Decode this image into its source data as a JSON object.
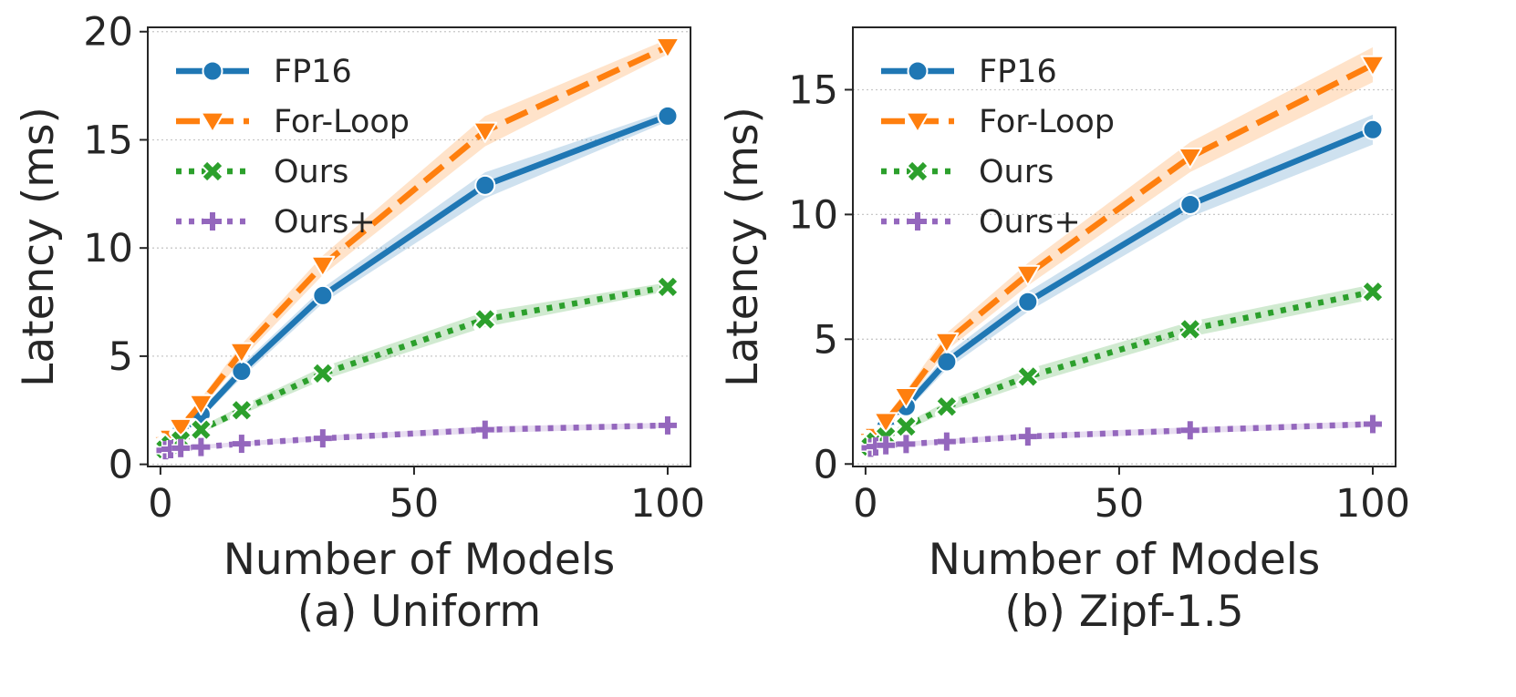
{
  "chart_data": [
    {
      "type": "line",
      "title": "",
      "caption": "(a) Uniform",
      "xlabel": "Number of Models",
      "ylabel": "Latency (ms)",
      "xlim": [
        -2.5,
        104.5
      ],
      "ylim": [
        -0.1,
        20.2
      ],
      "xticks": [
        0,
        50,
        100
      ],
      "yticks": [
        0,
        5,
        10,
        15,
        20
      ],
      "xtick_labels": [
        "0",
        "50",
        "100"
      ],
      "ytick_labels": [
        "0",
        "5",
        "10",
        "15",
        "20"
      ],
      "grid": "y",
      "legend_position": "upper-left",
      "x": [
        1,
        2,
        4,
        8,
        16,
        32,
        64,
        100
      ],
      "series": [
        {
          "name": "FP16",
          "color": "#1f77b4",
          "style": "solid",
          "marker": "circle",
          "values": [
            0.8,
            1.0,
            1.5,
            2.3,
            4.3,
            7.8,
            12.9,
            16.1
          ],
          "band": [
            0.12,
            0.12,
            0.15,
            0.2,
            0.3,
            0.35,
            0.6,
            0.25
          ]
        },
        {
          "name": "For-Loop",
          "color": "#ff7f0e",
          "style": "dashed",
          "marker": "triangle-down",
          "values": [
            0.9,
            1.2,
            1.7,
            2.8,
            5.2,
            9.2,
            15.4,
            19.3
          ],
          "band": [
            0.15,
            0.15,
            0.2,
            0.25,
            0.35,
            0.45,
            0.7,
            0.35
          ]
        },
        {
          "name": "Ours",
          "color": "#2ca02c",
          "style": "dotted",
          "marker": "x",
          "values": [
            0.7,
            0.9,
            1.1,
            1.6,
            2.5,
            4.2,
            6.7,
            8.2
          ],
          "band": [
            0.1,
            0.1,
            0.12,
            0.15,
            0.2,
            0.3,
            0.35,
            0.2
          ]
        },
        {
          "name": "Ours+",
          "color": "#9467bd",
          "style": "dotted",
          "marker": "plus",
          "values": [
            0.65,
            0.7,
            0.75,
            0.8,
            0.95,
            1.2,
            1.6,
            1.8
          ],
          "band": [
            0.08,
            0.08,
            0.08,
            0.1,
            0.1,
            0.12,
            0.15,
            0.12
          ]
        }
      ]
    },
    {
      "type": "line",
      "title": "",
      "caption": "(b) Zipf-1.5",
      "xlabel": "Number of Models",
      "ylabel": "Latency (ms)",
      "xlim": [
        -2.5,
        104.5
      ],
      "ylim": [
        -0.1,
        17.5
      ],
      "xticks": [
        0,
        50,
        100
      ],
      "yticks": [
        0,
        5,
        10,
        15
      ],
      "xtick_labels": [
        "0",
        "50",
        "100"
      ],
      "ytick_labels": [
        "0",
        "5",
        "10",
        "15"
      ],
      "grid": "y",
      "legend_position": "upper-left",
      "x": [
        1,
        2,
        4,
        8,
        16,
        32,
        64,
        100
      ],
      "series": [
        {
          "name": "FP16",
          "color": "#1f77b4",
          "style": "solid",
          "marker": "circle",
          "values": [
            0.8,
            1.0,
            1.5,
            2.3,
            4.1,
            6.5,
            10.4,
            13.4
          ],
          "band": [
            0.12,
            0.12,
            0.15,
            0.2,
            0.3,
            0.4,
            0.5,
            0.6
          ]
        },
        {
          "name": "For-Loop",
          "color": "#ff7f0e",
          "style": "dashed",
          "marker": "triangle-down",
          "values": [
            0.9,
            1.1,
            1.7,
            2.7,
            4.9,
            7.6,
            12.3,
            16.0
          ],
          "band": [
            0.15,
            0.15,
            0.2,
            0.25,
            0.35,
            0.45,
            0.6,
            0.7
          ]
        },
        {
          "name": "Ours",
          "color": "#2ca02c",
          "style": "dotted",
          "marker": "x",
          "values": [
            0.7,
            0.9,
            1.1,
            1.5,
            2.3,
            3.5,
            5.4,
            6.9
          ],
          "band": [
            0.1,
            0.1,
            0.12,
            0.15,
            0.2,
            0.3,
            0.3,
            0.3
          ]
        },
        {
          "name": "Ours+",
          "color": "#9467bd",
          "style": "dotted",
          "marker": "plus",
          "values": [
            0.65,
            0.7,
            0.75,
            0.8,
            0.9,
            1.1,
            1.35,
            1.6
          ],
          "band": [
            0.08,
            0.08,
            0.08,
            0.1,
            0.1,
            0.12,
            0.12,
            0.12
          ]
        }
      ]
    }
  ]
}
